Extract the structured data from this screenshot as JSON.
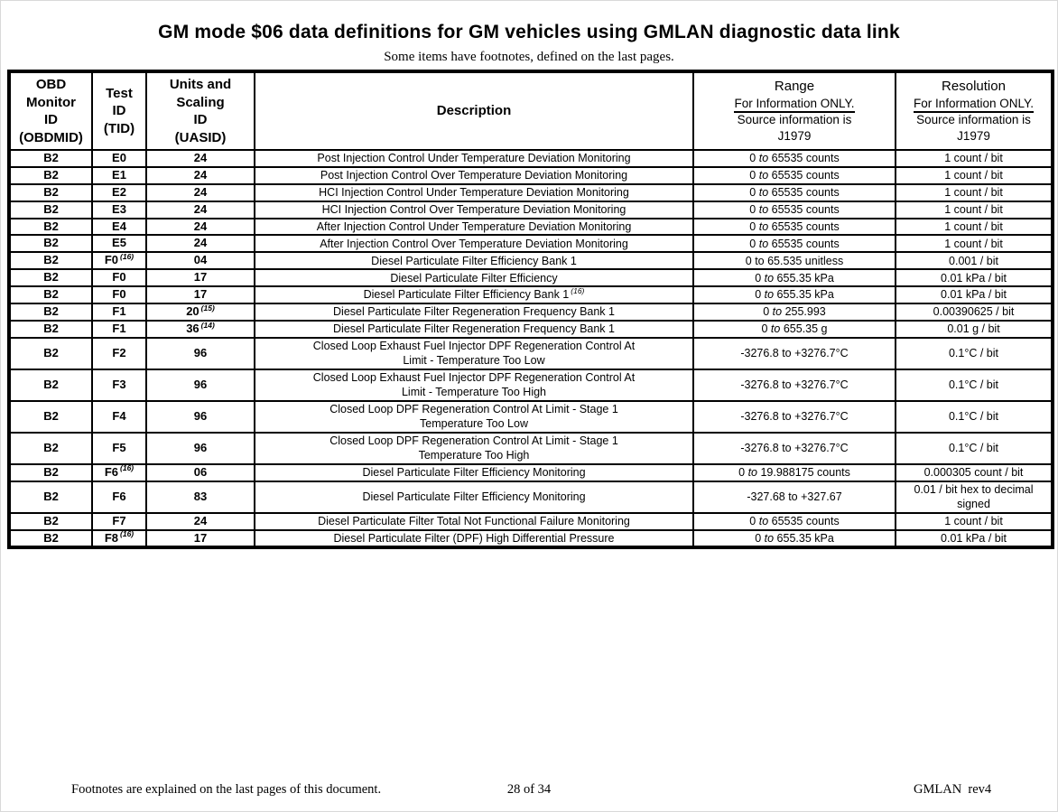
{
  "page": {
    "title": "GM mode $06 data definitions for GM vehicles using GMLAN diagnostic data link",
    "subtitle": "Some items have footnotes, defined on the last pages.",
    "footer": {
      "left": "Footnotes are explained on the last pages of this document.",
      "center": "28 of 34",
      "right": "GMLAN  rev4"
    }
  },
  "table": {
    "headers": {
      "obdmid": [
        "OBD",
        "Monitor",
        "ID",
        "(OBDMID)"
      ],
      "tid": [
        "Test",
        "ID",
        "(TID)"
      ],
      "uasid": [
        "Units and",
        "Scaling",
        "ID",
        "(UASID)"
      ],
      "description": "Description",
      "range": {
        "title": "Range",
        "info": "For Information ONLY.",
        "source": "Source information is",
        "ref": "J1979"
      },
      "resolution": {
        "title": "Resolution",
        "info": "For Information ONLY.",
        "source": "Source information is",
        "ref": "J1979"
      }
    },
    "rows": [
      {
        "obdmid": "B2",
        "tid": "E0",
        "uasid": "24",
        "desc": [
          "Post Injection Control Under Temperature Deviation Monitoring"
        ],
        "range": "0 to 65535 counts",
        "range_to_italic": true,
        "res": "1 count / bit",
        "tall": false
      },
      {
        "obdmid": "B2",
        "tid": "E1",
        "uasid": "24",
        "desc": [
          "Post Injection Control Over Temperature Deviation Monitoring"
        ],
        "range": "0 to 65535 counts",
        "range_to_italic": true,
        "res": "1 count / bit",
        "tall": false
      },
      {
        "obdmid": "B2",
        "tid": "E2",
        "uasid": "24",
        "desc": [
          "HCI Injection Control Under Temperature Deviation Monitoring"
        ],
        "range": "0 to 65535 counts",
        "range_to_italic": true,
        "res": "1 count / bit",
        "tall": false
      },
      {
        "obdmid": "B2",
        "tid": "E3",
        "uasid": "24",
        "desc": [
          "HCI Injection Control Over Temperature Deviation Monitoring"
        ],
        "range": "0 to 65535 counts",
        "range_to_italic": true,
        "res": "1 count / bit",
        "tall": false
      },
      {
        "obdmid": "B2",
        "tid": "E4",
        "uasid": "24",
        "desc": [
          "After Injection Control Under Temperature Deviation Monitoring"
        ],
        "range": "0 to 65535 counts",
        "range_to_italic": true,
        "res": "1 count / bit",
        "tall": false
      },
      {
        "obdmid": "B2",
        "tid": "E5",
        "uasid": "24",
        "desc": [
          "After Injection Control Over Temperature Deviation Monitoring"
        ],
        "range": "0 to 65535 counts",
        "range_to_italic": true,
        "res": "1 count / bit",
        "tall": false
      },
      {
        "obdmid": "B2",
        "tid": "F0",
        "tid_sup": "(16)",
        "uasid": "04",
        "desc": [
          "Diesel Particulate Filter Efficiency Bank 1"
        ],
        "range": "0 to 65.535 unitless",
        "range_to_italic": false,
        "res": "0.001 / bit",
        "tall": false
      },
      {
        "obdmid": "B2",
        "tid": "F0",
        "uasid": "17",
        "desc": [
          "Diesel Particulate Filter Efficiency"
        ],
        "range": "0 to 655.35 kPa",
        "range_to_italic": true,
        "res": "0.01 kPa / bit",
        "tall": false
      },
      {
        "obdmid": "B2",
        "tid": "F0",
        "uasid": "17",
        "desc": [
          "Diesel Particulate Filter Efficiency Bank 1"
        ],
        "desc_sup": "(16)",
        "range": "0 to 655.35 kPa",
        "range_to_italic": true,
        "res": "0.01 kPa / bit",
        "tall": false
      },
      {
        "obdmid": "B2",
        "tid": "F1",
        "uasid": "20",
        "uasid_sup": "(15)",
        "desc": [
          "Diesel Particulate Filter Regeneration Frequency Bank 1"
        ],
        "range": "0 to 255.993",
        "range_to_italic": true,
        "res": "0.00390625 / bit",
        "tall": false
      },
      {
        "obdmid": "B2",
        "tid": "F1",
        "uasid": "36",
        "uasid_sup": "(14)",
        "desc": [
          "Diesel Particulate Filter Regeneration Frequency Bank 1"
        ],
        "range": "0 to 655.35 g",
        "range_to_italic": true,
        "res": "0.01 g / bit",
        "tall": false
      },
      {
        "obdmid": "B2",
        "tid": "F2",
        "uasid": "96",
        "desc": [
          "Closed Loop Exhaust Fuel Injector DPF Regeneration Control At",
          "Limit - Temperature Too Low"
        ],
        "range": "-3276.8 to +3276.7°C",
        "range_to_italic": false,
        "res": "0.1°C / bit",
        "tall": true
      },
      {
        "obdmid": "B2",
        "tid": "F3",
        "uasid": "96",
        "desc": [
          "Closed Loop Exhaust Fuel Injector DPF Regeneration Control At",
          "Limit - Temperature Too High"
        ],
        "range": "-3276.8 to +3276.7°C",
        "range_to_italic": false,
        "res": "0.1°C / bit",
        "tall": true
      },
      {
        "obdmid": "B2",
        "tid": "F4",
        "uasid": "96",
        "desc": [
          "Closed Loop DPF Regeneration Control At Limit - Stage 1",
          "Temperature Too Low"
        ],
        "range": "-3276.8 to +3276.7°C",
        "range_to_italic": false,
        "res": "0.1°C / bit",
        "tall": true
      },
      {
        "obdmid": "B2",
        "tid": "F5",
        "uasid": "96",
        "desc": [
          "Closed Loop DPF Regeneration Control At Limit - Stage 1",
          "Temperature Too High"
        ],
        "range": "-3276.8 to +3276.7°C",
        "range_to_italic": false,
        "res": "0.1°C / bit",
        "tall": true
      },
      {
        "obdmid": "B2",
        "tid": "F6",
        "tid_sup": "(16)",
        "uasid": "06",
        "desc": [
          "Diesel Particulate Filter Efficiency Monitoring"
        ],
        "range": "0 to 19.988175 counts",
        "range_to_italic": true,
        "res": "0.000305 count / bit",
        "tall": false
      },
      {
        "obdmid": "B2",
        "tid": "F6",
        "uasid": "83",
        "desc": [
          "Diesel Particulate Filter Efficiency Monitoring"
        ],
        "range": "-327.68 to +327.67",
        "range_to_italic": false,
        "res": "0.01 / bit hex to decimal signed",
        "tall": true
      },
      {
        "obdmid": "B2",
        "tid": "F7",
        "uasid": "24",
        "desc": [
          "Diesel Particulate Filter Total Not Functional Failure Monitoring"
        ],
        "range": "0 to 65535 counts",
        "range_to_italic": true,
        "res": "1 count / bit",
        "tall": false
      },
      {
        "obdmid": "B2",
        "tid": "F8",
        "tid_sup": "(16)",
        "uasid": "17",
        "desc": [
          "Diesel Particulate Filter (DPF) High Differential Pressure"
        ],
        "range": "0 to 655.35 kPa",
        "range_to_italic": true,
        "res": "0.01 kPa / bit",
        "tall": false
      }
    ]
  }
}
